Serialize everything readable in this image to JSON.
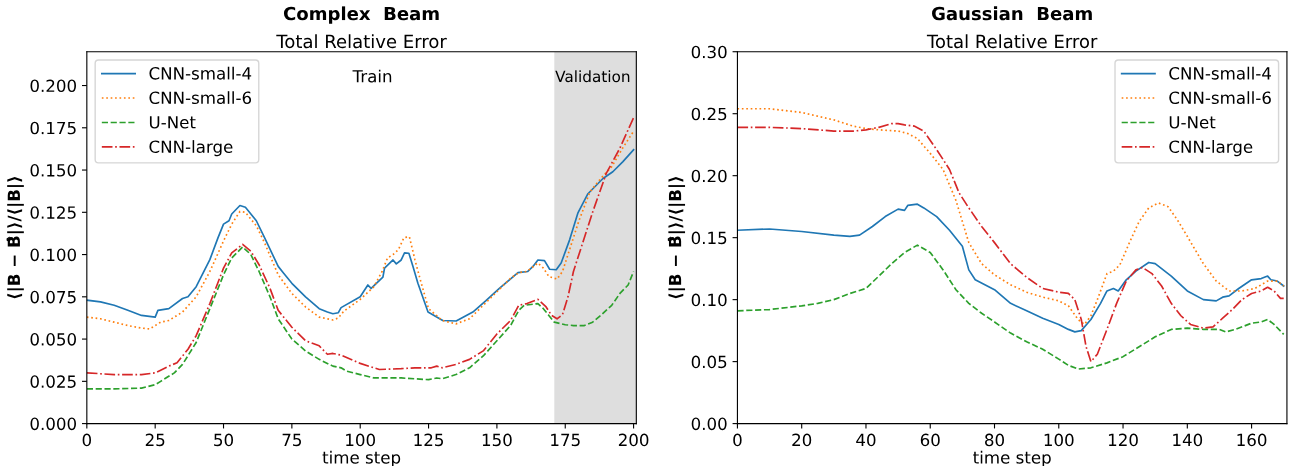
{
  "chart_data": [
    {
      "type": "line",
      "title": "Complex  Beam",
      "subtitle": "Total Relative Error",
      "xlabel": "time step",
      "ylabel": "⟨|B − B̂|⟩/⟨|B|⟩",
      "xlim": [
        0,
        201
      ],
      "xticks": [
        0,
        25,
        50,
        75,
        100,
        125,
        150,
        175,
        200
      ],
      "ylim": [
        0,
        0.22
      ],
      "yticks": [
        {
          "value": 0,
          "label": "0.000"
        },
        {
          "value": 0.025,
          "label": "0.025"
        },
        {
          "value": 0.05,
          "label": "0.050"
        },
        {
          "value": 0.075,
          "label": "0.075"
        },
        {
          "value": 0.1,
          "label": "0.100"
        },
        {
          "value": 0.125,
          "label": "0.125"
        },
        {
          "value": 0.15,
          "label": "0.150"
        },
        {
          "value": 0.175,
          "label": "0.175"
        },
        {
          "value": 0.2,
          "label": "0.200"
        }
      ],
      "grid": false,
      "legend": "top left",
      "annotations": [
        "Train"
      ],
      "bands": [
        {
          "axis": "x",
          "from": 171,
          "to": 201,
          "label": "Validation",
          "color": "#dedede"
        }
      ],
      "series": [
        {
          "name": "CNN-small-4",
          "color": "#1f77b4",
          "line_style": "solid",
          "x": [
            0,
            5,
            10,
            15,
            20,
            25,
            26,
            30,
            35,
            37,
            40,
            45,
            48,
            50,
            52,
            53,
            56,
            58,
            60,
            62,
            65,
            70,
            72,
            75,
            80,
            85,
            88,
            90,
            92,
            93,
            100,
            102.8,
            104,
            108.3,
            108.9,
            112,
            113.2,
            115,
            116.2,
            117.8,
            119.3,
            121.1,
            124.8,
            130.2,
            135.1,
            141.2,
            146,
            150.9,
            157.7,
            161.3,
            163.2,
            165,
            167.4,
            169.3,
            171.7,
            173.5,
            176.6,
            179.6,
            183.3,
            188.8,
            192.4,
            196.1,
            200
          ],
          "values": [
            0.073,
            0.072,
            0.07,
            0.067,
            0.064,
            0.063,
            0.067,
            0.068,
            0.074,
            0.075,
            0.081,
            0.097,
            0.11,
            0.118,
            0.12,
            0.124,
            0.129,
            0.128,
            0.124,
            0.12,
            0.11,
            0.093,
            0.089,
            0.083,
            0.075,
            0.068,
            0.066,
            0.065,
            0.0656,
            0.0686,
            0.075,
            0.082,
            0.08,
            0.0866,
            0.092,
            0.0968,
            0.0945,
            0.0968,
            0.101,
            0.1008,
            0.093,
            0.083,
            0.066,
            0.061,
            0.0607,
            0.066,
            0.0727,
            0.08,
            0.0893,
            0.09,
            0.093,
            0.0968,
            0.0964,
            0.0913,
            0.091,
            0.095,
            0.1087,
            0.1245,
            0.136,
            0.145,
            0.149,
            0.155,
            0.162
          ]
        },
        {
          "name": "CNN-small-6",
          "color": "#ff7f0e",
          "line_style": "dotted",
          "x": [
            0,
            5,
            10,
            15,
            20,
            23,
            25,
            27,
            30,
            35,
            40,
            45,
            50,
            53,
            56,
            58,
            62,
            65,
            70,
            75,
            80,
            85,
            90,
            92,
            94,
            100,
            105,
            108,
            110,
            112,
            114,
            116,
            118,
            120,
            122,
            125,
            130,
            135,
            140,
            145,
            150,
            155,
            158,
            161,
            165,
            167,
            169,
            172,
            174,
            177,
            180,
            184,
            188,
            192,
            196,
            200
          ],
          "values": [
            0.063,
            0.062,
            0.06,
            0.058,
            0.0565,
            0.056,
            0.058,
            0.06,
            0.061,
            0.066,
            0.075,
            0.09,
            0.108,
            0.118,
            0.1255,
            0.125,
            0.117,
            0.107,
            0.088,
            0.077,
            0.069,
            0.063,
            0.0613,
            0.0625,
            0.0665,
            0.0735,
            0.081,
            0.09,
            0.098,
            0.1,
            0.103,
            0.11,
            0.1105,
            0.097,
            0.085,
            0.068,
            0.061,
            0.059,
            0.062,
            0.07,
            0.078,
            0.086,
            0.0893,
            0.09,
            0.095,
            0.092,
            0.087,
            0.0855,
            0.09,
            0.105,
            0.12,
            0.137,
            0.145,
            0.152,
            0.163,
            0.173
          ]
        },
        {
          "name": "U-Net",
          "color": "#2ca02c",
          "line_style": "dashed",
          "x": [
            0,
            10,
            20,
            25,
            27,
            32,
            35,
            40,
            45,
            50,
            53,
            57,
            60,
            63,
            67,
            70,
            75,
            80,
            85,
            90,
            93,
            95,
            100,
            105,
            115,
            125,
            128,
            130,
            135,
            140,
            145,
            150,
            155,
            158,
            160,
            165,
            167,
            169,
            171,
            175,
            178,
            182,
            185,
            188,
            192,
            195,
            198,
            200
          ],
          "values": [
            0.0205,
            0.0205,
            0.021,
            0.023,
            0.025,
            0.03,
            0.035,
            0.048,
            0.068,
            0.088,
            0.098,
            0.1045,
            0.1,
            0.09,
            0.075,
            0.062,
            0.05,
            0.043,
            0.038,
            0.034,
            0.033,
            0.031,
            0.029,
            0.027,
            0.027,
            0.026,
            0.027,
            0.0265,
            0.029,
            0.033,
            0.04,
            0.049,
            0.058,
            0.067,
            0.07,
            0.071,
            0.068,
            0.064,
            0.06,
            0.0585,
            0.058,
            0.058,
            0.06,
            0.064,
            0.07,
            0.077,
            0.082,
            0.09
          ]
        },
        {
          "name": "CNN-large",
          "color": "#d62728",
          "line_style": "dashdot",
          "x": [
            0,
            10,
            20,
            25,
            30,
            33,
            37,
            40,
            45,
            50,
            53,
            57,
            60,
            63,
            67,
            70,
            75,
            80,
            85,
            88,
            90,
            93,
            100,
            107,
            115,
            120,
            126,
            128,
            130,
            135,
            140,
            145,
            150,
            155,
            158,
            161,
            165,
            168,
            170,
            172,
            174,
            176,
            178,
            181,
            185,
            190,
            195,
            200
          ],
          "values": [
            0.03,
            0.029,
            0.029,
            0.03,
            0.034,
            0.036,
            0.044,
            0.052,
            0.071,
            0.092,
            0.101,
            0.106,
            0.102,
            0.094,
            0.08,
            0.067,
            0.057,
            0.049,
            0.046,
            0.041,
            0.0415,
            0.0405,
            0.0356,
            0.032,
            0.0325,
            0.033,
            0.033,
            0.034,
            0.033,
            0.035,
            0.038,
            0.043,
            0.053,
            0.061,
            0.07,
            0.071,
            0.0735,
            0.069,
            0.064,
            0.062,
            0.0645,
            0.075,
            0.09,
            0.105,
            0.125,
            0.148,
            0.163,
            0.181
          ]
        }
      ]
    },
    {
      "type": "line",
      "title": "Gaussian  Beam",
      "subtitle": "Total Relative Error",
      "xlabel": "time step",
      "ylabel": "⟨|B − B̂|⟩/⟨|B|⟩",
      "xlim": [
        0,
        171
      ],
      "xticks": [
        0,
        20,
        40,
        60,
        80,
        100,
        120,
        140,
        160
      ],
      "ylim": [
        0,
        0.3
      ],
      "yticks": [
        {
          "value": 0,
          "label": "0.00"
        },
        {
          "value": 0.05,
          "label": "0.05"
        },
        {
          "value": 0.1,
          "label": "0.10"
        },
        {
          "value": 0.15,
          "label": "0.15"
        },
        {
          "value": 0.2,
          "label": "0.20"
        },
        {
          "value": 0.25,
          "label": "0.25"
        },
        {
          "value": 0.3,
          "label": "0.30"
        }
      ],
      "grid": false,
      "legend": "top right",
      "series": [
        {
          "name": "CNN-small-4",
          "color": "#1f77b4",
          "line_style": "solid",
          "x": [
            0,
            10,
            20,
            30,
            35,
            38,
            42,
            46,
            50,
            52,
            53,
            56,
            58,
            62,
            66,
            70,
            72,
            74,
            80,
            85,
            90,
            95,
            100,
            103,
            105,
            107,
            110,
            113,
            115,
            117,
            118.5,
            121,
            124,
            128,
            130,
            135,
            140,
            145,
            149,
            151,
            153,
            156,
            160,
            163,
            165,
            166,
            168,
            170
          ],
          "values": [
            0.156,
            0.157,
            0.155,
            0.152,
            0.151,
            0.152,
            0.159,
            0.167,
            0.173,
            0.172,
            0.176,
            0.177,
            0.174,
            0.167,
            0.156,
            0.143,
            0.124,
            0.116,
            0.108,
            0.097,
            0.091,
            0.085,
            0.08,
            0.076,
            0.074,
            0.075,
            0.084,
            0.097,
            0.107,
            0.109,
            0.107,
            0.116,
            0.123,
            0.13,
            0.129,
            0.119,
            0.107,
            0.1,
            0.099,
            0.102,
            0.103,
            0.109,
            0.116,
            0.117,
            0.119,
            0.116,
            0.115,
            0.111
          ]
        },
        {
          "name": "CNN-small-6",
          "color": "#ff7f0e",
          "line_style": "dotted",
          "x": [
            0,
            10,
            20,
            30,
            36,
            40,
            44,
            50,
            53,
            56,
            60,
            64,
            68,
            72,
            76,
            80,
            85,
            90,
            95,
            100,
            103,
            106,
            108,
            110,
            112,
            115,
            117,
            119,
            122,
            125,
            128,
            131,
            134,
            137,
            140,
            145,
            149,
            153,
            157,
            161,
            165,
            168,
            170
          ],
          "values": [
            0.254,
            0.254,
            0.251,
            0.245,
            0.24,
            0.238,
            0.237,
            0.236,
            0.234,
            0.23,
            0.218,
            0.205,
            0.18,
            0.146,
            0.129,
            0.12,
            0.112,
            0.106,
            0.102,
            0.099,
            0.095,
            0.084,
            0.08,
            0.087,
            0.1,
            0.121,
            0.123,
            0.128,
            0.146,
            0.163,
            0.174,
            0.178,
            0.175,
            0.164,
            0.151,
            0.129,
            0.115,
            0.107,
            0.107,
            0.109,
            0.115,
            0.115,
            0.111
          ]
        },
        {
          "name": "U-Net",
          "color": "#2ca02c",
          "line_style": "dashed",
          "x": [
            0,
            10,
            20,
            25,
            30,
            35,
            40,
            44,
            48,
            52,
            56,
            60,
            64,
            68,
            72,
            76,
            80,
            85,
            90,
            95,
            100,
            103,
            106,
            110,
            115,
            120,
            125,
            130,
            135,
            140,
            145,
            150,
            152,
            155,
            160,
            163,
            165,
            167,
            170
          ],
          "values": [
            0.091,
            0.092,
            0.095,
            0.097,
            0.1,
            0.105,
            0.109,
            0.119,
            0.129,
            0.138,
            0.144,
            0.138,
            0.124,
            0.108,
            0.097,
            0.089,
            0.082,
            0.073,
            0.066,
            0.06,
            0.052,
            0.047,
            0.044,
            0.045,
            0.049,
            0.054,
            0.062,
            0.07,
            0.076,
            0.077,
            0.076,
            0.076,
            0.074,
            0.076,
            0.081,
            0.082,
            0.084,
            0.08,
            0.072
          ]
        },
        {
          "name": "CNN-large",
          "color": "#d62728",
          "line_style": "dashdot",
          "x": [
            0,
            10,
            20,
            30,
            36,
            40,
            44,
            48,
            50,
            52,
            55,
            58,
            62,
            66,
            69,
            72,
            76,
            80,
            85,
            90,
            95,
            100,
            103,
            105,
            107,
            108.5,
            110,
            112,
            115,
            118,
            121,
            124,
            126,
            129,
            132,
            135,
            138,
            141,
            145,
            148,
            151,
            154,
            157,
            160,
            163,
            165,
            167,
            169,
            170
          ],
          "values": [
            0.239,
            0.239,
            0.238,
            0.236,
            0.236,
            0.237,
            0.239,
            0.242,
            0.242,
            0.241,
            0.24,
            0.236,
            0.221,
            0.205,
            0.186,
            0.174,
            0.159,
            0.146,
            0.129,
            0.118,
            0.109,
            0.106,
            0.105,
            0.1,
            0.084,
            0.062,
            0.05,
            0.056,
            0.076,
            0.097,
            0.115,
            0.124,
            0.126,
            0.121,
            0.111,
            0.097,
            0.087,
            0.08,
            0.077,
            0.078,
            0.085,
            0.092,
            0.1,
            0.105,
            0.107,
            0.11,
            0.107,
            0.101,
            0.101
          ]
        }
      ]
    }
  ]
}
